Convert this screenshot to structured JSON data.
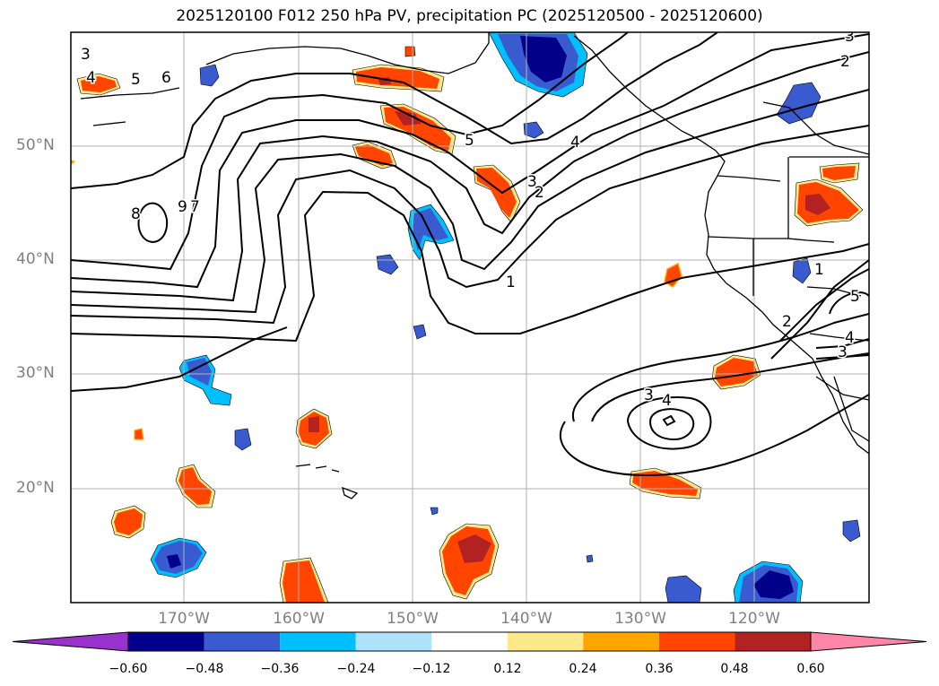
{
  "title": "2025120100 F012 250 hPa PV, precipitation PC (2025120500 - 2025120600)",
  "map": {
    "lat_labels": [
      "50°N",
      "40°N",
      "30°N",
      "20°N"
    ],
    "lon_labels": [
      "170°W",
      "160°W",
      "150°W",
      "140°W",
      "130°W",
      "120°W"
    ]
  },
  "pv_contour_labels": [
    "3",
    "4",
    "5",
    "6",
    "7",
    "8",
    "9",
    "5",
    "4",
    "3",
    "2",
    "1",
    "3",
    "2",
    "1",
    "2",
    "3",
    "4",
    "5",
    "3",
    "4"
  ],
  "colorbar": {
    "ticks": [
      "−0.60",
      "−0.48",
      "−0.36",
      "−0.24",
      "−0.12",
      "0.12",
      "0.24",
      "0.36",
      "0.48",
      "0.60"
    ],
    "colors": [
      "#9932cc",
      "#00008b",
      "#3a5bd0",
      "#00bfff",
      "#aee1fb",
      "#ffffff",
      "#fde98a",
      "#ffa500",
      "#ff4500",
      "#b22222",
      "#ff86a8"
    ]
  }
}
